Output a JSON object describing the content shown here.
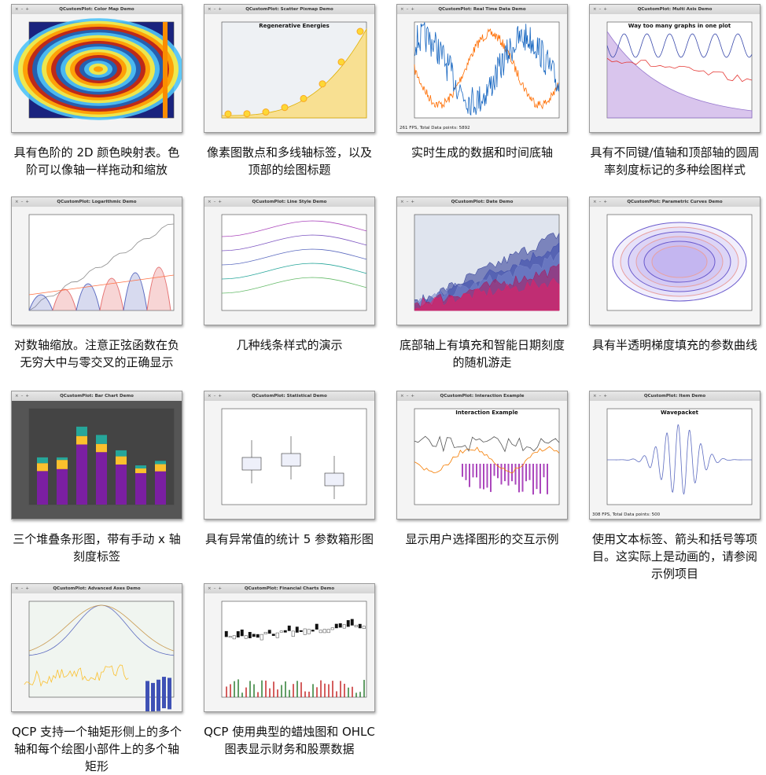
{
  "gallery": [
    {
      "window_title": "QCustomPlot: Color Map Demo",
      "caption": "具有色阶的 2D 颜色映射表。色阶可以像轴一样拖动和缩放"
    },
    {
      "window_title": "QCustomPlot: Scatter Pixmap Demo",
      "plot_title": "Regenerative Energies",
      "caption": "像素图散点和多线轴标签，以及顶部的绘图标题"
    },
    {
      "window_title": "QCustomPlot: Real Time Data Demo",
      "status": "261 FPS, Total Data points: 5892",
      "caption": "实时生成的数据和时间底轴"
    },
    {
      "window_title": "QCustomPlot: Multi Axis Demo",
      "plot_title": "Way too many graphs in one plot",
      "caption": "具有不同键/值轴和顶部轴的圆周率刻度标记的多种绘图样式"
    },
    {
      "window_title": "QCustomPlot: Logarithmic Demo",
      "caption": "对数轴缩放。注意正弦函数在负无穷大中与零交叉的正确显示"
    },
    {
      "window_title": "QCustomPlot: Line Style Demo",
      "caption": "几种线条样式的演示"
    },
    {
      "window_title": "QCustomPlot: Date Demo",
      "caption": "底部轴上有填充和智能日期刻度的随机游走"
    },
    {
      "window_title": "QCustomPlot: Parametric Curves Demo",
      "caption": "具有半透明梯度填充的参数曲线"
    },
    {
      "window_title": "QCustomPlot: Bar Chart Demo",
      "caption": "三个堆叠条形图，带有手动 x 轴刻度标签"
    },
    {
      "window_title": "QCustomPlot: Statistical Demo",
      "caption": "具有异常值的统计 5 参数箱形图"
    },
    {
      "window_title": "QCustomPlot: Interaction Example",
      "plot_title": "Interaction Example",
      "caption": "显示用户选择图形的交互示例"
    },
    {
      "window_title": "QCustomPlot: Item Demo",
      "plot_title": "Wavepacket",
      "status": "308 FPS, Total Data points: 500",
      "caption": "使用文本标签、箭头和括号等项目。这实际上是动画的，请参阅示例项目"
    },
    {
      "window_title": "QCustomPlot: Advanced Axes Demo",
      "caption": "QCP 支持一个轴矩形侧上的多个轴和每个绘图小部件上的多个轴矩形"
    },
    {
      "window_title": "QCustomPlot: Financial Charts Demo",
      "caption": "QCP 使用典型的蜡烛图和 OHLC 图表显示财务和股票数据"
    }
  ]
}
